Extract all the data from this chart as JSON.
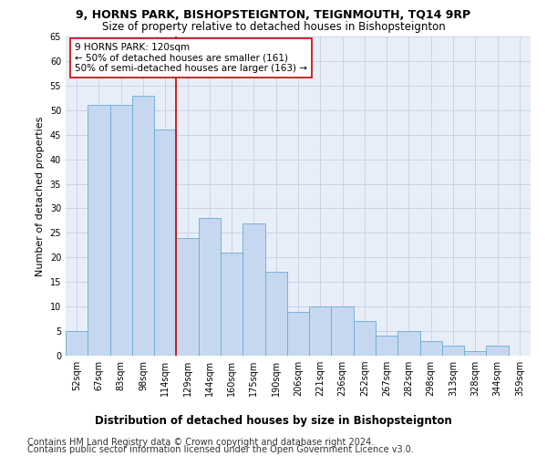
{
  "title": "9, HORNS PARK, BISHOPSTEIGNTON, TEIGNMOUTH, TQ14 9RP",
  "subtitle": "Size of property relative to detached houses in Bishopsteignton",
  "xlabel": "Distribution of detached houses by size in Bishopsteignton",
  "ylabel": "Number of detached properties",
  "categories": [
    "52sqm",
    "67sqm",
    "83sqm",
    "98sqm",
    "114sqm",
    "129sqm",
    "144sqm",
    "160sqm",
    "175sqm",
    "190sqm",
    "206sqm",
    "221sqm",
    "236sqm",
    "252sqm",
    "267sqm",
    "282sqm",
    "298sqm",
    "313sqm",
    "328sqm",
    "344sqm",
    "359sqm"
  ],
  "values": [
    5,
    51,
    51,
    53,
    46,
    24,
    28,
    21,
    27,
    17,
    9,
    10,
    10,
    7,
    4,
    5,
    3,
    2,
    1,
    2,
    0
  ],
  "bar_color": "#c5d8f0",
  "bar_edge_color": "#6aaad4",
  "vline_x": 4.5,
  "vline_color": "#cc0000",
  "annotation_text": "9 HORNS PARK: 120sqm\n← 50% of detached houses are smaller (161)\n50% of semi-detached houses are larger (163) →",
  "annotation_box_color": "#ffffff",
  "annotation_box_edge": "#cc0000",
  "ylim": [
    0,
    65
  ],
  "yticks": [
    0,
    5,
    10,
    15,
    20,
    25,
    30,
    35,
    40,
    45,
    50,
    55,
    60,
    65
  ],
  "footer1": "Contains HM Land Registry data © Crown copyright and database right 2024.",
  "footer2": "Contains public sector information licensed under the Open Government Licence v3.0.",
  "bg_color": "#ffffff",
  "plot_bg_color": "#e8eef8",
  "grid_color": "#c8d4e8",
  "title_fontsize": 9,
  "subtitle_fontsize": 8.5,
  "xlabel_fontsize": 8.5,
  "ylabel_fontsize": 8,
  "tick_fontsize": 7,
  "footer_fontsize": 7,
  "annot_fontsize": 7.5
}
